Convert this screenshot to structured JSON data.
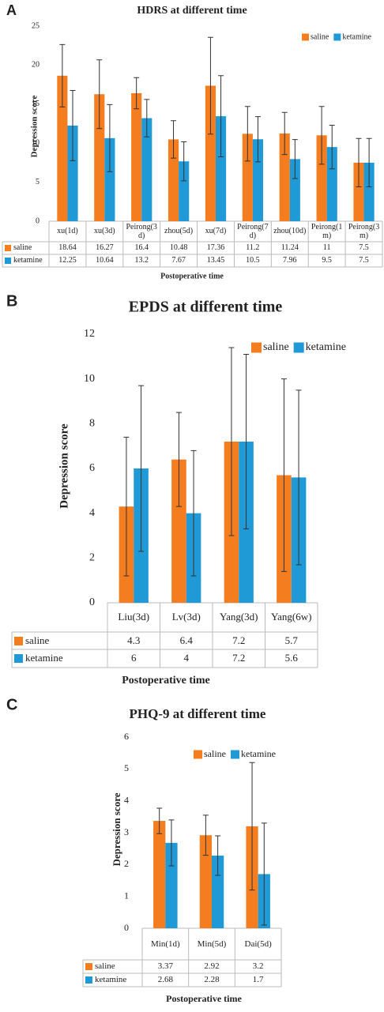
{
  "chart_data": [
    {
      "type": "bar",
      "panel": "A",
      "title": "HDRS at different time",
      "y_label": "Depression score",
      "x_label": "Postoperative time",
      "categories": [
        "xu(1d)",
        "xu(3d)",
        "Peirong(3d)",
        "zhou(5d)",
        "xu(7d)",
        "Peirong(7d)",
        "zhou(10d)",
        "Peirong(1m)",
        "Peirong(3m)"
      ],
      "series": [
        {
          "name": "saline",
          "color": "#f47d20",
          "values": [
            18.64,
            16.27,
            16.4,
            10.48,
            17.36,
            11.2,
            11.24,
            11,
            7.5
          ],
          "errors": [
            4,
            4.4,
            2,
            2.4,
            6.2,
            3.5,
            2.7,
            3.7,
            3.1
          ]
        },
        {
          "name": "ketamine",
          "color": "#1f9ad6",
          "values": [
            12.25,
            10.64,
            13.2,
            7.67,
            13.45,
            10.5,
            7.96,
            9.5,
            7.5
          ],
          "errors": [
            4.5,
            4.3,
            2.4,
            2.5,
            5.2,
            2.9,
            2.5,
            2.8,
            3.1
          ]
        }
      ],
      "ylim": [
        0,
        25
      ],
      "yticks": [
        0,
        5,
        10,
        15,
        20,
        25
      ],
      "legend": "top-right"
    },
    {
      "type": "bar",
      "panel": "B",
      "title": "EPDS at different time",
      "y_label": "Depression score",
      "x_label": "Postoperative time",
      "categories": [
        "Liu(3d)",
        "Lv(3d)",
        "Yang(3d)",
        "Yang(6w)"
      ],
      "series": [
        {
          "name": "saline",
          "color": "#f47d20",
          "values": [
            4.3,
            6.4,
            7.2,
            5.7
          ],
          "errors": [
            3.1,
            2.1,
            4.2,
            4.3
          ]
        },
        {
          "name": "ketamine",
          "color": "#1f9ad6",
          "values": [
            6,
            4,
            7.2,
            5.6
          ],
          "errors": [
            3.7,
            2.8,
            3.9,
            3.9
          ]
        }
      ],
      "ylim": [
        0,
        12
      ],
      "yticks": [
        0,
        2,
        4,
        6,
        8,
        10,
        12
      ],
      "legend": "top-right"
    },
    {
      "type": "bar",
      "panel": "C",
      "title": "PHQ-9 at different time",
      "y_label": "Depression score",
      "x_label": "Postoperative time",
      "categories": [
        "Min(1d)",
        "Min(5d)",
        "Dai(5d)"
      ],
      "series": [
        {
          "name": "saline",
          "color": "#f47d20",
          "values": [
            3.37,
            2.92,
            3.2
          ],
          "errors": [
            0.4,
            0.63,
            2
          ]
        },
        {
          "name": "ketamine",
          "color": "#1f9ad6",
          "values": [
            2.68,
            2.28,
            1.7
          ],
          "errors": [
            0.72,
            0.62,
            1.6
          ]
        }
      ],
      "ylim": [
        0,
        6
      ],
      "yticks": [
        0,
        1,
        2,
        3,
        4,
        5,
        6
      ],
      "legend": "top-right"
    }
  ]
}
